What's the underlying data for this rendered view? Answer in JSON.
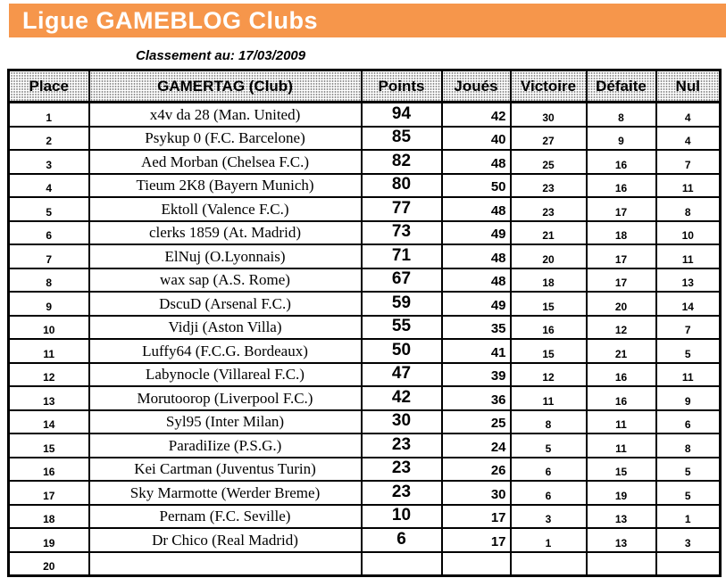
{
  "banner": {
    "title": "Ligue GAMEBLOG Clubs",
    "background_color": "#F6964B",
    "text_color": "#FFFFFF"
  },
  "subtitle": "Classement au: 17/03/2009",
  "table": {
    "headers": [
      "Place",
      "GAMERTAG (Club)",
      "Points",
      "Joués",
      "Victoire",
      "Défaite",
      "Nul"
    ],
    "rows": [
      {
        "place": "1",
        "gamertag": "x4v da 28 (Man. United)",
        "points": "94",
        "joues": "42",
        "victoire": "30",
        "defaite": "8",
        "nul": "4"
      },
      {
        "place": "2",
        "gamertag": "Psykup 0 (F.C. Barcelone)",
        "points": "85",
        "joues": "40",
        "victoire": "27",
        "defaite": "9",
        "nul": "4"
      },
      {
        "place": "3",
        "gamertag": "Aed Morban (Chelsea F.C.)",
        "points": "82",
        "joues": "48",
        "victoire": "25",
        "defaite": "16",
        "nul": "7"
      },
      {
        "place": "4",
        "gamertag": "Tieum 2K8 (Bayern Munich)",
        "points": "80",
        "joues": "50",
        "victoire": "23",
        "defaite": "16",
        "nul": "11"
      },
      {
        "place": "5",
        "gamertag": "Ektoll (Valence F.C.)",
        "points": "77",
        "joues": "48",
        "victoire": "23",
        "defaite": "17",
        "nul": "8"
      },
      {
        "place": "6",
        "gamertag": "clerks 1859 (At. Madrid)",
        "points": "73",
        "joues": "49",
        "victoire": "21",
        "defaite": "18",
        "nul": "10"
      },
      {
        "place": "7",
        "gamertag": "ElNuj (O.Lyonnais)",
        "points": "71",
        "joues": "48",
        "victoire": "20",
        "defaite": "17",
        "nul": "11"
      },
      {
        "place": "8",
        "gamertag": "wax sap (A.S. Rome)",
        "points": "67",
        "joues": "48",
        "victoire": "18",
        "defaite": "17",
        "nul": "13"
      },
      {
        "place": "9",
        "gamertag": "DscuD (Arsenal F.C.)",
        "points": "59",
        "joues": "49",
        "victoire": "15",
        "defaite": "20",
        "nul": "14"
      },
      {
        "place": "10",
        "gamertag": "Vidji (Aston Villa)",
        "points": "55",
        "joues": "35",
        "victoire": "16",
        "defaite": "12",
        "nul": "7"
      },
      {
        "place": "11",
        "gamertag": "Luffy64 (F.C.G. Bordeaux)",
        "points": "50",
        "joues": "41",
        "victoire": "15",
        "defaite": "21",
        "nul": "5"
      },
      {
        "place": "12",
        "gamertag": "Labynocle (Villareal F.C.)",
        "points": "47",
        "joues": "39",
        "victoire": "12",
        "defaite": "16",
        "nul": "11"
      },
      {
        "place": "13",
        "gamertag": "Morutoorop (Liverpool F.C.)",
        "points": "42",
        "joues": "36",
        "victoire": "11",
        "defaite": "16",
        "nul": "9"
      },
      {
        "place": "14",
        "gamertag": "Syl95 (Inter Milan)",
        "points": "30",
        "joues": "25",
        "victoire": "8",
        "defaite": "11",
        "nul": "6"
      },
      {
        "place": "15",
        "gamertag": "ParadiIize (P.S.G.)",
        "points": "23",
        "joues": "24",
        "victoire": "5",
        "defaite": "11",
        "nul": "8"
      },
      {
        "place": "16",
        "gamertag": "Kei Cartman (Juventus Turin)",
        "points": "23",
        "joues": "26",
        "victoire": "6",
        "defaite": "15",
        "nul": "5"
      },
      {
        "place": "17",
        "gamertag": "Sky Marmotte (Werder Breme)",
        "points": "23",
        "joues": "30",
        "victoire": "6",
        "defaite": "19",
        "nul": "5"
      },
      {
        "place": "18",
        "gamertag": "Pernam (F.C. Seville)",
        "points": "10",
        "joues": "17",
        "victoire": "3",
        "defaite": "13",
        "nul": "1"
      },
      {
        "place": "19",
        "gamertag": "Dr Chico (Real Madrid)",
        "points": "6",
        "joues": "17",
        "victoire": "1",
        "defaite": "13",
        "nul": "3"
      },
      {
        "place": "20",
        "gamertag": "",
        "points": "",
        "joues": "",
        "victoire": "",
        "defaite": "",
        "nul": ""
      }
    ]
  }
}
